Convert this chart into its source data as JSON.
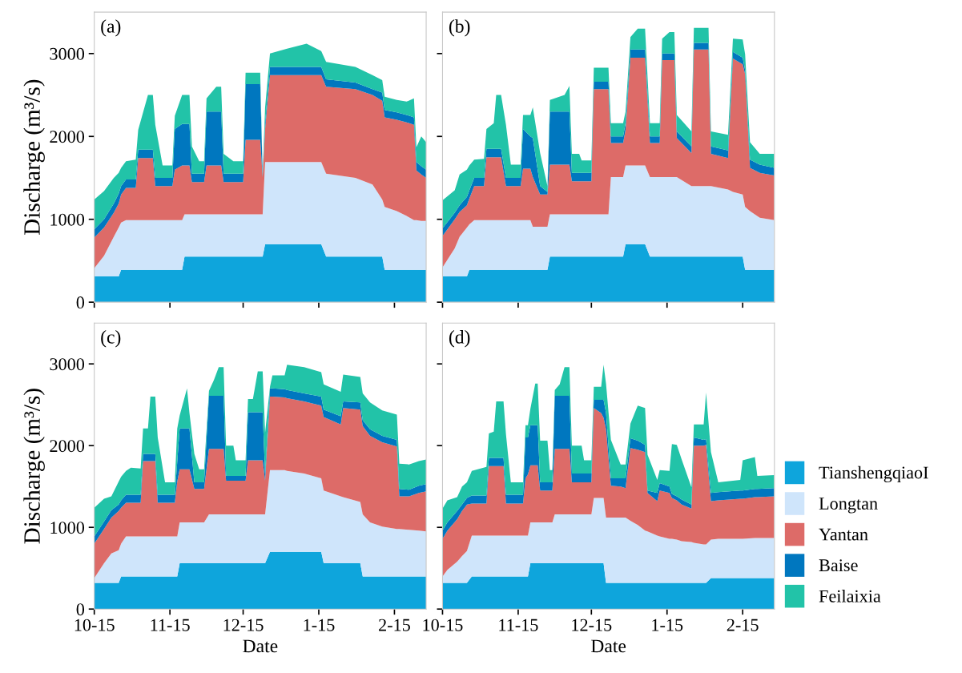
{
  "chart_data": [
    {
      "type": "area",
      "stacked": true,
      "ylabel": "Discharge (m³/s)",
      "annotations": [
        "(a)"
      ],
      "tick_labels": "y",
      "xlim": [
        "2000-10-15",
        "2001-02-28"
      ],
      "ylim": [
        0,
        3500
      ],
      "yticks": [
        0,
        1000,
        2000,
        3000
      ],
      "xticks": [
        {
          "value": "2000-10-15",
          "label": null
        },
        {
          "value": "2000-11-15",
          "label": null
        },
        {
          "value": "2000-12-15",
          "label": null
        },
        {
          "value": "2001-01-15",
          "label": null
        },
        {
          "value": "2001-02-15",
          "label": null
        }
      ],
      "x": [
        "2000-10-15",
        "2000-10-19",
        "2000-10-23",
        "2000-10-25",
        "2000-10-26",
        "2000-10-28",
        "2000-11-01",
        "2000-11-02",
        "2000-11-06",
        "2000-11-08",
        "2000-11-09",
        "2000-11-12",
        "2000-11-16",
        "2000-11-17",
        "2000-11-20",
        "2000-11-21",
        "2000-11-23",
        "2000-11-24",
        "2000-11-27",
        "2000-11-29",
        "2000-11-30",
        "2000-12-04",
        "2000-12-06",
        "2000-12-07",
        "2000-12-11",
        "2000-12-15",
        "2000-12-16",
        "2000-12-22",
        "2000-12-23",
        "2000-12-24",
        "2000-12-26",
        "2001-01-02",
        "2001-01-10",
        "2001-01-16",
        "2001-01-18",
        "2001-01-30",
        "2001-02-06",
        "2001-02-10",
        "2001-02-11",
        "2001-02-16",
        "2001-02-20",
        "2001-02-23",
        "2001-02-24",
        "2001-02-26",
        "2001-02-28"
      ],
      "series": [
        {
          "color": "#0ea5dc",
          "values": [
            310,
            310,
            310,
            310,
            390,
            390,
            390,
            390,
            390,
            390,
            390,
            390,
            390,
            390,
            390,
            550,
            550,
            550,
            550,
            550,
            550,
            550,
            550,
            550,
            550,
            550,
            550,
            550,
            550,
            700,
            700,
            700,
            700,
            700,
            550,
            550,
            550,
            550,
            390,
            390,
            390,
            390,
            390,
            390,
            390
          ]
        },
        {
          "color": "#cfe5fb",
          "values": [
            100,
            250,
            480,
            590,
            570,
            600,
            600,
            600,
            600,
            600,
            600,
            600,
            600,
            600,
            600,
            510,
            510,
            510,
            510,
            510,
            510,
            510,
            510,
            510,
            510,
            510,
            510,
            510,
            510,
            990,
            990,
            990,
            990,
            990,
            1000,
            950,
            870,
            690,
            760,
            710,
            650,
            600,
            600,
            590,
            590
          ]
        },
        {
          "color": "#dd6b68",
          "values": [
            370,
            340,
            290,
            290,
            340,
            390,
            390,
            750,
            750,
            750,
            410,
            410,
            410,
            610,
            660,
            590,
            590,
            390,
            390,
            390,
            590,
            590,
            590,
            390,
            390,
            390,
            900,
            900,
            450,
            400,
            1050,
            1050,
            1050,
            1050,
            1050,
            1070,
            1080,
            1190,
            1080,
            1100,
            1130,
            1150,
            600,
            560,
            520
          ]
        },
        {
          "color": "#0077bf",
          "values": [
            100,
            100,
            110,
            120,
            100,
            100,
            100,
            100,
            100,
            100,
            100,
            100,
            100,
            490,
            500,
            500,
            500,
            100,
            100,
            100,
            650,
            650,
            650,
            100,
            100,
            100,
            670,
            670,
            20,
            70,
            100,
            100,
            100,
            100,
            90,
            80,
            70,
            100,
            90,
            90,
            90,
            90,
            100,
            100,
            100
          ]
        },
        {
          "color": "#22c3a8",
          "values": [
            360,
            340,
            310,
            250,
            220,
            220,
            240,
            240,
            660,
            660,
            640,
            150,
            150,
            160,
            350,
            350,
            350,
            330,
            150,
            150,
            160,
            300,
            300,
            240,
            150,
            150,
            140,
            140,
            20,
            190,
            160,
            220,
            280,
            190,
            210,
            190,
            170,
            150,
            160,
            150,
            160,
            230,
            180,
            360,
            330
          ]
        }
      ]
    },
    {
      "type": "area",
      "stacked": true,
      "annotations": [
        "(b)"
      ],
      "tick_labels": false,
      "xlim": [
        "2000-10-15",
        "2001-02-28"
      ],
      "ylim": [
        0,
        3500
      ],
      "yticks": [
        {
          "value": 0,
          "label": null
        },
        {
          "value": 1000,
          "label": null
        },
        {
          "value": 2000,
          "label": null
        },
        {
          "value": 3000,
          "label": null
        }
      ],
      "xticks": [
        {
          "value": "2000-10-15",
          "label": null
        },
        {
          "value": "2000-11-15",
          "label": null
        },
        {
          "value": "2000-12-15",
          "label": null
        },
        {
          "value": "2001-01-15",
          "label": null
        },
        {
          "value": "2001-02-15",
          "label": null
        }
      ],
      "x": [
        "2000-10-15",
        "2000-10-20",
        "2000-10-22",
        "2000-10-25",
        "2000-10-26",
        "2000-10-28",
        "2000-11-01",
        "2000-11-02",
        "2000-11-05",
        "2000-11-06",
        "2000-11-08",
        "2000-11-10",
        "2000-11-12",
        "2000-11-16",
        "2000-11-17",
        "2000-11-20",
        "2000-11-21",
        "2000-11-24",
        "2000-11-27",
        "2000-11-28",
        "2000-12-04",
        "2000-12-06",
        "2000-12-07",
        "2000-12-10",
        "2000-12-11",
        "2000-12-15",
        "2000-12-16",
        "2000-12-22",
        "2000-12-23",
        "2000-12-28",
        "2000-12-29",
        "2000-12-31",
        "2001-01-03",
        "2001-01-06",
        "2001-01-08",
        "2001-01-12",
        "2001-01-13",
        "2001-01-16",
        "2001-01-18",
        "2001-01-19",
        "2001-01-25",
        "2001-01-26",
        "2001-02-01",
        "2001-02-02",
        "2001-02-09",
        "2001-02-11",
        "2001-02-15",
        "2001-02-16",
        "2001-02-18",
        "2001-02-22",
        "2001-02-28"
      ],
      "series": [
        {
          "color": "#0ea5dc",
          "values": [
            310,
            310,
            310,
            310,
            390,
            390,
            390,
            390,
            390,
            390,
            390,
            390,
            390,
            390,
            390,
            390,
            390,
            390,
            390,
            550,
            550,
            550,
            550,
            550,
            550,
            550,
            550,
            550,
            550,
            550,
            700,
            700,
            700,
            700,
            550,
            550,
            550,
            550,
            550,
            550,
            550,
            550,
            550,
            550,
            550,
            550,
            550,
            390,
            390,
            390,
            390
          ]
        },
        {
          "color": "#cfe5fb",
          "values": [
            110,
            340,
            480,
            590,
            550,
            600,
            600,
            600,
            600,
            600,
            600,
            600,
            600,
            600,
            600,
            600,
            520,
            520,
            520,
            510,
            510,
            510,
            510,
            510,
            510,
            510,
            510,
            510,
            960,
            960,
            950,
            950,
            950,
            950,
            960,
            960,
            960,
            960,
            960,
            960,
            850,
            850,
            850,
            850,
            810,
            780,
            750,
            760,
            710,
            630,
            600
          ]
        },
        {
          "color": "#dd6b68",
          "values": [
            380,
            350,
            300,
            270,
            310,
            410,
            410,
            760,
            760,
            760,
            760,
            410,
            410,
            410,
            620,
            620,
            600,
            390,
            390,
            600,
            600,
            600,
            400,
            400,
            400,
            400,
            1510,
            1510,
            410,
            410,
            430,
            1300,
            1300,
            1300,
            410,
            410,
            1410,
            1410,
            1410,
            470,
            400,
            1650,
            1650,
            390,
            380,
            1610,
            1570,
            1600,
            520,
            540,
            540
          ]
        },
        {
          "color": "#0077bf",
          "values": [
            90,
            80,
            80,
            100,
            100,
            100,
            100,
            100,
            100,
            100,
            100,
            100,
            100,
            100,
            480,
            390,
            470,
            100,
            30,
            640,
            640,
            640,
            100,
            100,
            100,
            100,
            90,
            90,
            80,
            80,
            80,
            100,
            100,
            100,
            80,
            80,
            80,
            80,
            80,
            80,
            80,
            80,
            80,
            90,
            90,
            80,
            80,
            50,
            100,
            100,
            90
          ]
        },
        {
          "color": "#22c3a8",
          "values": [
            340,
            270,
            370,
            330,
            300,
            220,
            230,
            240,
            310,
            650,
            650,
            640,
            160,
            160,
            170,
            260,
            370,
            400,
            70,
            140,
            200,
            310,
            230,
            230,
            150,
            150,
            170,
            170,
            160,
            160,
            140,
            150,
            250,
            250,
            160,
            160,
            180,
            260,
            260,
            200,
            180,
            180,
            180,
            180,
            190,
            160,
            220,
            190,
            210,
            130,
            170
          ]
        }
      ]
    },
    {
      "type": "area",
      "stacked": true,
      "ylabel": "Discharge (m³/s)",
      "xlabel": "Date",
      "annotations": [
        "(c)"
      ],
      "xlim": [
        "2000-10-15",
        "2001-02-28"
      ],
      "ylim": [
        0,
        3500
      ],
      "yticks": [
        0,
        1000,
        2000,
        3000
      ],
      "xticks": [
        {
          "value": "2000-10-15",
          "label": "10-15"
        },
        {
          "value": "2000-11-15",
          "label": "11-15"
        },
        {
          "value": "2000-12-15",
          "label": "12-15"
        },
        {
          "value": "2001-01-15",
          "label": "1-15"
        },
        {
          "value": "2001-02-15",
          "label": "2-15"
        }
      ],
      "x": [
        "2000-10-15",
        "2000-10-19",
        "2000-10-22",
        "2000-10-25",
        "2000-10-26",
        "2000-10-28",
        "2000-10-30",
        "2000-11-03",
        "2000-11-04",
        "2000-11-06",
        "2000-11-07",
        "2000-11-09",
        "2000-11-10",
        "2000-11-13",
        "2000-11-17",
        "2000-11-18",
        "2000-11-19",
        "2000-11-22",
        "2000-11-23",
        "2000-11-25",
        "2000-11-27",
        "2000-11-29",
        "2000-12-01",
        "2000-12-03",
        "2000-12-05",
        "2000-12-07",
        "2000-12-08",
        "2000-12-11",
        "2000-12-12",
        "2000-12-16",
        "2000-12-17",
        "2000-12-19",
        "2000-12-21",
        "2000-12-23",
        "2000-12-24",
        "2000-12-26",
        "2000-12-27",
        "2001-01-01",
        "2001-01-02",
        "2001-01-09",
        "2001-01-16",
        "2001-01-17",
        "2001-01-24",
        "2001-01-25",
        "2001-02-01",
        "2001-02-02",
        "2001-02-05",
        "2001-02-10",
        "2001-02-16",
        "2001-02-17",
        "2001-02-21",
        "2001-02-25",
        "2001-02-28"
      ],
      "series": [
        {
          "color": "#0ea5dc",
          "values": [
            320,
            320,
            320,
            320,
            400,
            400,
            400,
            400,
            400,
            400,
            400,
            400,
            400,
            400,
            400,
            400,
            560,
            560,
            560,
            560,
            560,
            560,
            560,
            560,
            560,
            560,
            560,
            560,
            560,
            560,
            560,
            560,
            560,
            560,
            560,
            700,
            700,
            700,
            700,
            700,
            700,
            560,
            560,
            560,
            560,
            400,
            400,
            400,
            400,
            400,
            400,
            400,
            400
          ]
        },
        {
          "color": "#cfe5fb",
          "values": [
            60,
            240,
            360,
            400,
            400,
            490,
            490,
            490,
            490,
            490,
            490,
            490,
            490,
            490,
            490,
            490,
            500,
            500,
            500,
            500,
            500,
            500,
            600,
            600,
            600,
            600,
            600,
            600,
            600,
            600,
            600,
            600,
            600,
            600,
            600,
            1000,
            1000,
            1000,
            990,
            960,
            900,
            890,
            820,
            810,
            750,
            760,
            660,
            610,
            580,
            580,
            570,
            560,
            550
          ]
        },
        {
          "color": "#dd6b68",
          "values": [
            420,
            420,
            440,
            480,
            440,
            410,
            410,
            410,
            920,
            920,
            920,
            920,
            410,
            410,
            410,
            670,
            650,
            650,
            650,
            410,
            410,
            410,
            800,
            800,
            800,
            800,
            410,
            410,
            410,
            410,
            660,
            660,
            660,
            660,
            410,
            900,
            900,
            890,
            890,
            880,
            890,
            900,
            880,
            1090,
            1130,
            1080,
            1060,
            1030,
            1010,
            400,
            410,
            460,
            490
          ]
        },
        {
          "color": "#0077bf",
          "values": [
            90,
            90,
            90,
            80,
            90,
            100,
            100,
            100,
            90,
            90,
            90,
            90,
            100,
            100,
            100,
            240,
            500,
            500,
            500,
            80,
            80,
            80,
            650,
            650,
            650,
            650,
            60,
            60,
            60,
            60,
            590,
            590,
            590,
            590,
            80,
            100,
            100,
            100,
            100,
            100,
            110,
            90,
            100,
            80,
            90,
            70,
            80,
            80,
            80,
            90,
            80,
            90,
            90
          ]
        },
        {
          "color": "#22c3a8",
          "values": [
            350,
            280,
            170,
            280,
            290,
            290,
            330,
            320,
            310,
            310,
            700,
            700,
            700,
            150,
            150,
            410,
            160,
            490,
            190,
            350,
            160,
            160,
            60,
            190,
            350,
            350,
            370,
            370,
            190,
            190,
            160,
            160,
            500,
            500,
            510,
            20,
            160,
            170,
            310,
            320,
            300,
            310,
            300,
            330,
            310,
            330,
            330,
            310,
            310,
            310,
            310,
            300,
            300
          ]
        }
      ]
    },
    {
      "type": "area",
      "stacked": true,
      "xlabel": "Date",
      "annotations": [
        "(d)"
      ],
      "tick_labels": "x",
      "legend": "right",
      "xlim": [
        "2000-10-15",
        "2001-02-28"
      ],
      "ylim": [
        0,
        3500
      ],
      "yticks": [
        {
          "value": 0,
          "label": null
        },
        {
          "value": 1000,
          "label": null
        },
        {
          "value": 2000,
          "label": null
        },
        {
          "value": 3000,
          "label": null
        }
      ],
      "xticks": [
        {
          "value": "2000-10-15",
          "label": "10-15"
        },
        {
          "value": "2000-11-15",
          "label": "11-15"
        },
        {
          "value": "2000-12-15",
          "label": "12-15"
        },
        {
          "value": "2001-01-15",
          "label": "1-15"
        },
        {
          "value": "2001-02-15",
          "label": "2-15"
        }
      ],
      "x": [
        "2000-10-15",
        "2000-10-17",
        "2000-10-21",
        "2000-10-23",
        "2000-10-25",
        "2000-10-27",
        "2000-11-02",
        "2000-11-03",
        "2000-11-05",
        "2000-11-06",
        "2000-11-09",
        "2000-11-10",
        "2000-11-12",
        "2000-11-17",
        "2000-11-18",
        "2000-11-19",
        "2000-11-20",
        "2000-11-22",
        "2000-11-23",
        "2000-11-24",
        "2000-11-27",
        "2000-11-28",
        "2000-11-29",
        "2000-11-30",
        "2000-12-02",
        "2000-12-04",
        "2000-12-06",
        "2000-12-07",
        "2000-12-11",
        "2000-12-12",
        "2000-12-15",
        "2000-12-16",
        "2000-12-19",
        "2000-12-20",
        "2000-12-21",
        "2000-12-23",
        "2000-12-27",
        "2000-12-29",
        "2000-12-31",
        "2001-01-03",
        "2001-01-06",
        "2001-01-07",
        "2001-01-11",
        "2001-01-12",
        "2001-01-16",
        "2001-01-17",
        "2001-01-19",
        "2001-01-21",
        "2001-01-25",
        "2001-01-26",
        "2001-01-30",
        "2001-01-31",
        "2001-02-02",
        "2001-02-05",
        "2001-02-14",
        "2001-02-15",
        "2001-02-20",
        "2001-02-21",
        "2001-02-28"
      ],
      "series": [
        {
          "name": "TianshengqiaoI",
          "color": "#0ea5dc",
          "values": [
            320,
            320,
            320,
            320,
            320,
            400,
            400,
            400,
            400,
            400,
            400,
            400,
            400,
            400,
            400,
            400,
            560,
            560,
            560,
            560,
            560,
            560,
            560,
            560,
            560,
            560,
            560,
            560,
            560,
            560,
            560,
            560,
            560,
            560,
            320,
            320,
            320,
            320,
            320,
            320,
            320,
            320,
            320,
            320,
            320,
            320,
            320,
            320,
            320,
            320,
            320,
            320,
            380,
            380,
            380,
            380,
            380,
            380,
            380
          ]
        },
        {
          "name": "Longtan",
          "color": "#cfe5fb",
          "values": [
            80,
            160,
            260,
            330,
            390,
            500,
            500,
            500,
            500,
            500,
            500,
            500,
            500,
            500,
            500,
            500,
            500,
            500,
            500,
            500,
            500,
            500,
            500,
            600,
            600,
            600,
            600,
            600,
            600,
            600,
            600,
            800,
            800,
            800,
            800,
            800,
            800,
            800,
            760,
            710,
            640,
            630,
            580,
            570,
            540,
            540,
            530,
            510,
            500,
            490,
            470,
            470,
            470,
            480,
            480,
            480,
            490,
            490,
            490
          ]
        },
        {
          "name": "Yantan",
          "color": "#dd6b68",
          "values": [
            460,
            480,
            520,
            550,
            570,
            390,
            390,
            850,
            850,
            850,
            850,
            390,
            390,
            390,
            700,
            750,
            700,
            700,
            700,
            390,
            390,
            390,
            390,
            800,
            800,
            800,
            800,
            390,
            390,
            390,
            390,
            1100,
            1040,
            980,
            1080,
            390,
            380,
            360,
            890,
            920,
            960,
            470,
            420,
            560,
            560,
            500,
            480,
            450,
            410,
            1190,
            1210,
            1220,
            470,
            470,
            490,
            490,
            500,
            500,
            510
          ]
        },
        {
          "name": "Baise",
          "color": "#0077bf",
          "values": [
            100,
            100,
            100,
            80,
            80,
            100,
            100,
            100,
            100,
            100,
            100,
            110,
            110,
            110,
            500,
            450,
            490,
            490,
            490,
            100,
            100,
            100,
            100,
            650,
            650,
            650,
            650,
            110,
            110,
            110,
            110,
            100,
            160,
            220,
            200,
            90,
            100,
            120,
            120,
            110,
            90,
            30,
            100,
            90,
            80,
            50,
            50,
            60,
            50,
            100,
            70,
            70,
            100,
            100,
            100,
            100,
            100,
            100,
            100
          ]
        },
        {
          "name": "Feilaixia",
          "color": "#22c3a8",
          "values": [
            270,
            270,
            170,
            220,
            190,
            300,
            350,
            300,
            320,
            690,
            690,
            740,
            150,
            150,
            150,
            150,
            200,
            510,
            510,
            510,
            510,
            150,
            150,
            70,
            140,
            350,
            350,
            340,
            340,
            160,
            160,
            160,
            160,
            430,
            360,
            470,
            170,
            170,
            180,
            430,
            450,
            440,
            160,
            160,
            190,
            610,
            630,
            490,
            210,
            160,
            190,
            570,
            500,
            120,
            130,
            370,
            390,
            160,
            160
          ]
        }
      ]
    }
  ]
}
